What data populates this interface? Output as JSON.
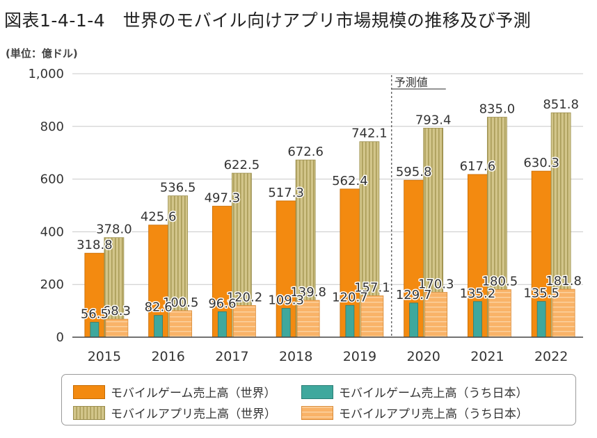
{
  "title": "図表1-4-1-4　世界のモバイル向けアプリ市場規模の推移及び予測",
  "unit_label": "(単位：億ドル)",
  "forecast_label": "予測値",
  "colors": {
    "game_world": "#F38A10",
    "app_world": "#D2C58A",
    "game_japan": "#3FA89D",
    "app_japan": "#F9B368"
  },
  "legend": [
    {
      "key": "game_world",
      "label": "モバイルゲーム売上高（世界）"
    },
    {
      "key": "game_japan",
      "label": "モバイルゲーム売上高（うち日本）"
    },
    {
      "key": "app_world",
      "label": "モバイルアプリ売上高（世界）"
    },
    {
      "key": "app_japan",
      "label": "モバイルアプリ売上高（うち日本）"
    }
  ],
  "chart_data": {
    "type": "bar",
    "categories": [
      "2015",
      "2016",
      "2017",
      "2018",
      "2019",
      "2020",
      "2021",
      "2022"
    ],
    "ylim": [
      0,
      1000
    ],
    "yticks": [
      "0",
      "200",
      "400",
      "600",
      "800",
      "1,000"
    ],
    "forecast_from": "2020",
    "series": [
      {
        "name": "モバイルゲーム売上高（世界）",
        "key": "game_world",
        "values": [
          318.8,
          425.6,
          497.3,
          517.3,
          562.4,
          595.8,
          617.6,
          630.3
        ]
      },
      {
        "name": "モバイルゲーム売上高（うち日本）",
        "key": "game_japan",
        "values": [
          56.5,
          82.6,
          96.6,
          109.3,
          120.7,
          129.7,
          135.2,
          135.5
        ]
      },
      {
        "name": "モバイルアプリ売上高（世界）",
        "key": "app_world",
        "values": [
          378.0,
          536.5,
          622.5,
          672.6,
          742.1,
          793.4,
          835.0,
          851.8
        ]
      },
      {
        "name": "モバイルアプリ売上高（うち日本）",
        "key": "app_japan",
        "values": [
          68.3,
          100.5,
          120.2,
          139.8,
          157.1,
          170.3,
          180.5,
          181.8
        ]
      }
    ]
  }
}
